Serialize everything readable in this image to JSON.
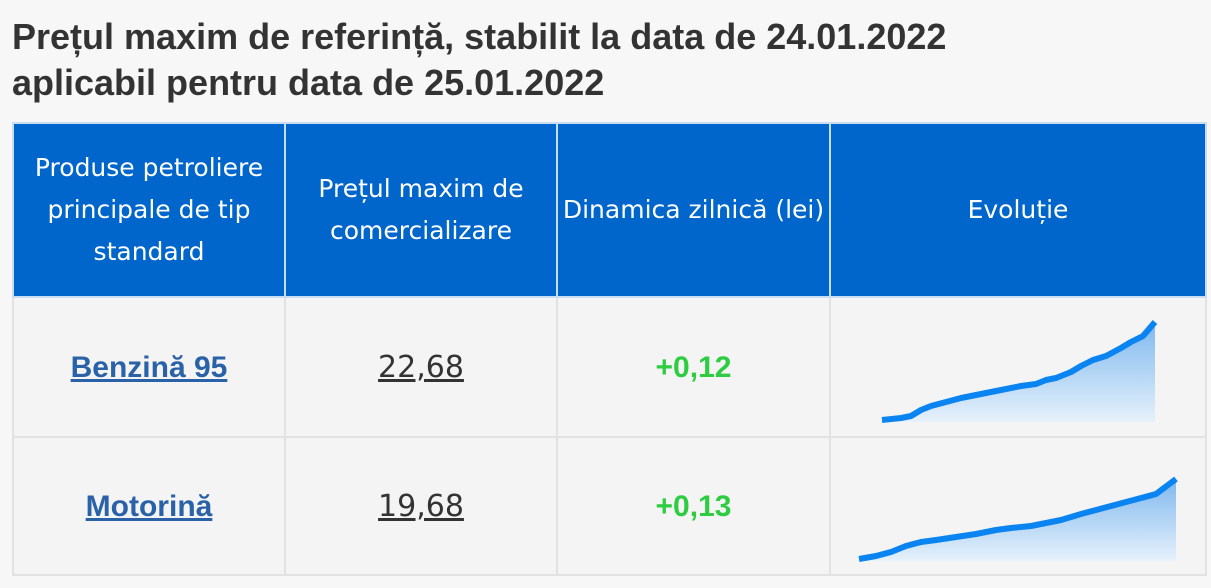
{
  "header": {
    "title_lines": [
      "Prețul maxim de referință, stabilit la data de 24.01.2022",
      "aplicabil pentru data de 25.01.2022"
    ]
  },
  "table": {
    "columns": [
      "Produse petroliere principale de tip standard",
      "Prețul maxim de comercializare",
      "Dinamica zilnică (lei)",
      "Evoluție"
    ],
    "rows": [
      [
        "Benzină 95",
        "22,68",
        "+0,12"
      ],
      [
        "Motorină",
        "19,68",
        "+0,13"
      ]
    ]
  }
}
